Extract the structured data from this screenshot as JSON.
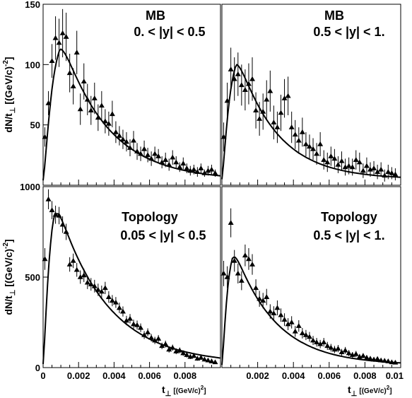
{
  "chart_data": [
    {
      "type": "scatter",
      "panel": "top-left",
      "labels": [
        "MB",
        "0. < |y| < 0.5"
      ],
      "ylabel_main": "dN/t",
      "ylabel_sub": "⊥",
      "ylabel_unit": "[(GeV/c)",
      "ylabel_exp": "-2",
      "ylabel_close": "]",
      "xlim": [
        0,
        0.01
      ],
      "ylim": [
        0,
        150
      ],
      "yticks": [
        50,
        100,
        150
      ],
      "y_tick_labels": [
        "50",
        "100",
        "150"
      ],
      "x": [
        0.0001,
        0.0003,
        0.0005,
        0.0007,
        0.0009,
        0.0011,
        0.0013,
        0.0015,
        0.0017,
        0.0019,
        0.0021,
        0.0023,
        0.0025,
        0.0027,
        0.0029,
        0.0031,
        0.0033,
        0.0035,
        0.0037,
        0.0039,
        0.0041,
        0.0043,
        0.0045,
        0.0047,
        0.0049,
        0.0051,
        0.0053,
        0.0055,
        0.0057,
        0.0059,
        0.0061,
        0.0063,
        0.0065,
        0.0067,
        0.0069,
        0.0071,
        0.0073,
        0.0075,
        0.0077,
        0.0079,
        0.0081,
        0.0083,
        0.0085,
        0.0087,
        0.0089,
        0.0091,
        0.0093,
        0.0095,
        0.0097
      ],
      "y": [
        40,
        68,
        103,
        122,
        118,
        126,
        123,
        93,
        82,
        110,
        63,
        86,
        71,
        62,
        72,
        56,
        66,
        53,
        51,
        59,
        44,
        41,
        38,
        36,
        31,
        37,
        28,
        26,
        30,
        25,
        22,
        26,
        24,
        19,
        21,
        17,
        23,
        19,
        15,
        18,
        14,
        12,
        13,
        11,
        14,
        10,
        12,
        13,
        10
      ],
      "yerr": [
        8,
        10,
        14,
        18,
        20,
        20,
        20,
        16,
        15,
        18,
        13,
        15,
        13,
        12,
        13,
        11,
        12,
        10,
        10,
        11,
        9,
        8,
        8,
        8,
        7,
        8,
        7,
        6,
        7,
        6,
        6,
        6,
        6,
        5,
        6,
        5,
        6,
        5,
        4,
        5,
        4,
        4,
        4,
        4,
        4,
        3,
        4,
        4,
        3
      ],
      "fit": {
        "amplitude": 113,
        "peak": 0.00095,
        "tail": 0.0026,
        "baseline": 4
      }
    },
    {
      "type": "scatter",
      "panel": "top-right",
      "labels": [
        "MB",
        "0.5 < |y| < 1."
      ],
      "xlim": [
        0,
        0.01
      ],
      "ylim": [
        0,
        150
      ],
      "x": [
        0.0001,
        0.0003,
        0.0005,
        0.0007,
        0.0009,
        0.0011,
        0.0013,
        0.0015,
        0.0017,
        0.0019,
        0.0021,
        0.0023,
        0.0025,
        0.0027,
        0.0029,
        0.0031,
        0.0033,
        0.0035,
        0.0037,
        0.0039,
        0.0041,
        0.0043,
        0.0045,
        0.0047,
        0.0049,
        0.0051,
        0.0053,
        0.0055,
        0.0057,
        0.0059,
        0.0061,
        0.0063,
        0.0065,
        0.0067,
        0.0069,
        0.0071,
        0.0073,
        0.0075,
        0.0077,
        0.0079,
        0.0081,
        0.0083,
        0.0085,
        0.0087,
        0.0089,
        0.0091,
        0.0093,
        0.0095,
        0.0097
      ],
      "y": [
        40,
        70,
        96,
        88,
        92,
        83,
        79,
        84,
        88,
        62,
        55,
        61,
        71,
        78,
        52,
        48,
        60,
        72,
        74,
        48,
        42,
        37,
        44,
        34,
        32,
        30,
        26,
        34,
        21,
        19,
        24,
        22,
        17,
        20,
        15,
        16,
        15,
        21,
        19,
        12,
        16,
        13,
        14,
        11,
        13,
        8,
        11,
        10,
        9
      ],
      "yerr": [
        12,
        15,
        18,
        18,
        18,
        17,
        17,
        17,
        18,
        15,
        14,
        15,
        16,
        17,
        14,
        13,
        15,
        16,
        16,
        13,
        12,
        11,
        12,
        10,
        10,
        9,
        9,
        10,
        8,
        8,
        8,
        8,
        7,
        8,
        7,
        7,
        7,
        8,
        8,
        6,
        7,
        6,
        6,
        6,
        6,
        5,
        6,
        5,
        5
      ],
      "fit": {
        "amplitude": 100,
        "peak": 0.0008,
        "tail": 0.0022,
        "baseline": 5
      }
    },
    {
      "type": "scatter",
      "panel": "bottom-left",
      "labels": [
        "Topology",
        "0.05 < |y| < 0.5"
      ],
      "ylabel_main": "dN/t",
      "ylabel_sub": "⊥",
      "ylabel_unit": "[(GeV/c)",
      "ylabel_exp": "-2",
      "ylabel_close": "]",
      "xlim": [
        0,
        0.01
      ],
      "ylim": [
        0,
        1000
      ],
      "yticks": [
        0,
        500,
        1000
      ],
      "y_tick_labels": [
        "0",
        "500",
        "1000"
      ],
      "x": [
        0.0001,
        0.0003,
        0.0005,
        0.0007,
        0.0009,
        0.0011,
        0.0013,
        0.0015,
        0.0017,
        0.0019,
        0.0021,
        0.0023,
        0.0025,
        0.0027,
        0.0029,
        0.0031,
        0.0033,
        0.0035,
        0.0037,
        0.0039,
        0.0041,
        0.0043,
        0.0045,
        0.0047,
        0.0049,
        0.0051,
        0.0053,
        0.0055,
        0.0057,
        0.0059,
        0.0061,
        0.0063,
        0.0065,
        0.0067,
        0.0069,
        0.0071,
        0.0073,
        0.0075,
        0.0077,
        0.0079,
        0.0081,
        0.0083,
        0.0085,
        0.0087,
        0.0089,
        0.0091,
        0.0093,
        0.0095,
        0.0097
      ],
      "y": [
        600,
        930,
        870,
        845,
        840,
        790,
        750,
        570,
        590,
        540,
        500,
        510,
        470,
        460,
        450,
        430,
        420,
        440,
        390,
        370,
        360,
        330,
        310,
        260,
        270,
        240,
        235,
        220,
        180,
        195,
        165,
        150,
        160,
        120,
        130,
        100,
        110,
        90,
        95,
        80,
        70,
        60,
        65,
        50,
        55,
        45,
        40,
        35,
        30
      ],
      "yerr": [
        60,
        55,
        50,
        50,
        48,
        46,
        45,
        40,
        40,
        38,
        37,
        37,
        36,
        35,
        35,
        34,
        33,
        34,
        32,
        31,
        30,
        29,
        28,
        26,
        26,
        25,
        25,
        24,
        22,
        22,
        21,
        20,
        20,
        18,
        19,
        17,
        17,
        16,
        16,
        15,
        14,
        13,
        13,
        12,
        12,
        11,
        11,
        10,
        10
      ],
      "fit": {
        "amplitude": 850,
        "peak": 0.00065,
        "tail": 0.0028,
        "baseline": 20
      }
    },
    {
      "type": "scatter",
      "panel": "bottom-right",
      "labels": [
        "Topology",
        "0.5 < |y| < 1."
      ],
      "xlim": [
        0,
        0.01
      ],
      "ylim": [
        0,
        1000
      ],
      "xticks": [
        0.002,
        0.004,
        0.006,
        0.008,
        0.01
      ],
      "x_tick_labels": [
        "0.002",
        "0.004",
        "0.006",
        "0.008",
        "0.01"
      ],
      "x": [
        0.0001,
        0.0003,
        0.0005,
        0.0007,
        0.0009,
        0.0011,
        0.0013,
        0.0015,
        0.0017,
        0.0019,
        0.0021,
        0.0023,
        0.0025,
        0.0027,
        0.0029,
        0.0031,
        0.0033,
        0.0035,
        0.0037,
        0.0039,
        0.0041,
        0.0043,
        0.0045,
        0.0047,
        0.0049,
        0.0051,
        0.0053,
        0.0055,
        0.0057,
        0.0059,
        0.0061,
        0.0063,
        0.0065,
        0.0067,
        0.0069,
        0.0071,
        0.0073,
        0.0075,
        0.0077,
        0.0079,
        0.0081,
        0.0083,
        0.0085,
        0.0087,
        0.0089,
        0.0091,
        0.0093,
        0.0095,
        0.0097
      ],
      "y": [
        520,
        500,
        800,
        590,
        520,
        480,
        620,
        600,
        570,
        440,
        380,
        370,
        390,
        310,
        300,
        330,
        290,
        265,
        240,
        250,
        200,
        230,
        190,
        180,
        170,
        150,
        140,
        130,
        140,
        120,
        110,
        100,
        105,
        85,
        95,
        80,
        70,
        75,
        60,
        65,
        55,
        50,
        45,
        48,
        40,
        38,
        35,
        30,
        28
      ],
      "yerr": [
        70,
        60,
        80,
        60,
        55,
        52,
        60,
        60,
        57,
        48,
        44,
        43,
        45,
        40,
        39,
        41,
        37,
        35,
        33,
        34,
        30,
        32,
        29,
        28,
        27,
        25,
        24,
        23,
        24,
        22,
        21,
        20,
        20,
        18,
        19,
        17,
        16,
        17,
        15,
        15,
        14,
        13,
        13,
        13,
        12,
        11,
        11,
        10,
        10
      ],
      "fit": {
        "amplitude": 610,
        "peak": 0.0006,
        "tail": 0.0023,
        "baseline": 15
      }
    }
  ],
  "bottom_left_x_axis": {
    "xticks": [
      0,
      0.002,
      0.004,
      0.006,
      0.008
    ],
    "x_tick_labels": [
      "0",
      "0.002",
      "0.004",
      "0.006",
      "0.008"
    ],
    "xlabel_main": "t",
    "xlabel_sub": "⊥",
    "xlabel_unit": "[(GeV/c)",
    "xlabel_exp": "2",
    "xlabel_close": "]"
  },
  "bottom_right_x_axis": {
    "xlabel_main": "t",
    "xlabel_sub": "⊥",
    "xlabel_unit": "[(GeV/c)",
    "xlabel_exp": "2",
    "xlabel_close": "]"
  }
}
